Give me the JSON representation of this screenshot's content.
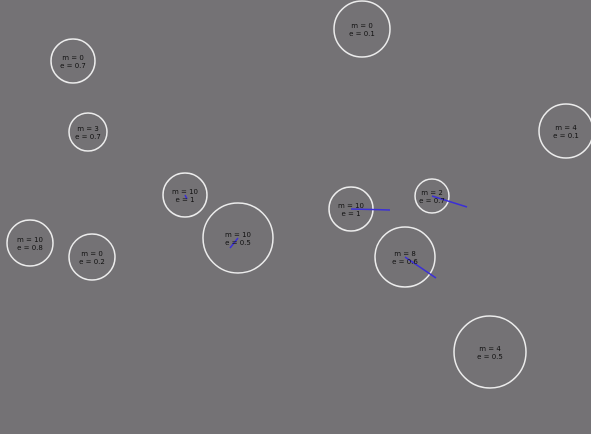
{
  "colors": {
    "background": "#747275",
    "ring": "#ececec",
    "velocity": "#3b2fd6",
    "text": "#111111"
  },
  "particles": [
    {
      "m": "m = 0",
      "e": "e = 0.1",
      "velocity": false
    },
    {
      "m": "m = 0",
      "e": "e = 0.7",
      "velocity": false
    },
    {
      "m": "m = 3",
      "e": "e = 0.7",
      "velocity": false
    },
    {
      "m": "m = 4",
      "e": "e = 0.1",
      "velocity": false
    },
    {
      "m": "m = 10",
      "e": "e = 1",
      "velocity": true
    },
    {
      "m": "m = 10",
      "e": "e = 0.5",
      "velocity": true
    },
    {
      "m": "m = 10",
      "e": "e = 1",
      "velocity": true
    },
    {
      "m": "m = 2",
      "e": "e = 0.7",
      "velocity": true
    },
    {
      "m": "m = 10",
      "e": "e = 0.8",
      "velocity": false
    },
    {
      "m": "m = 0",
      "e": "e = 0.2",
      "velocity": false
    },
    {
      "m": "m = 8",
      "e": "e = 0.6",
      "velocity": true
    },
    {
      "m": "m = 4",
      "e": "e = 0.5",
      "velocity": false
    }
  ]
}
